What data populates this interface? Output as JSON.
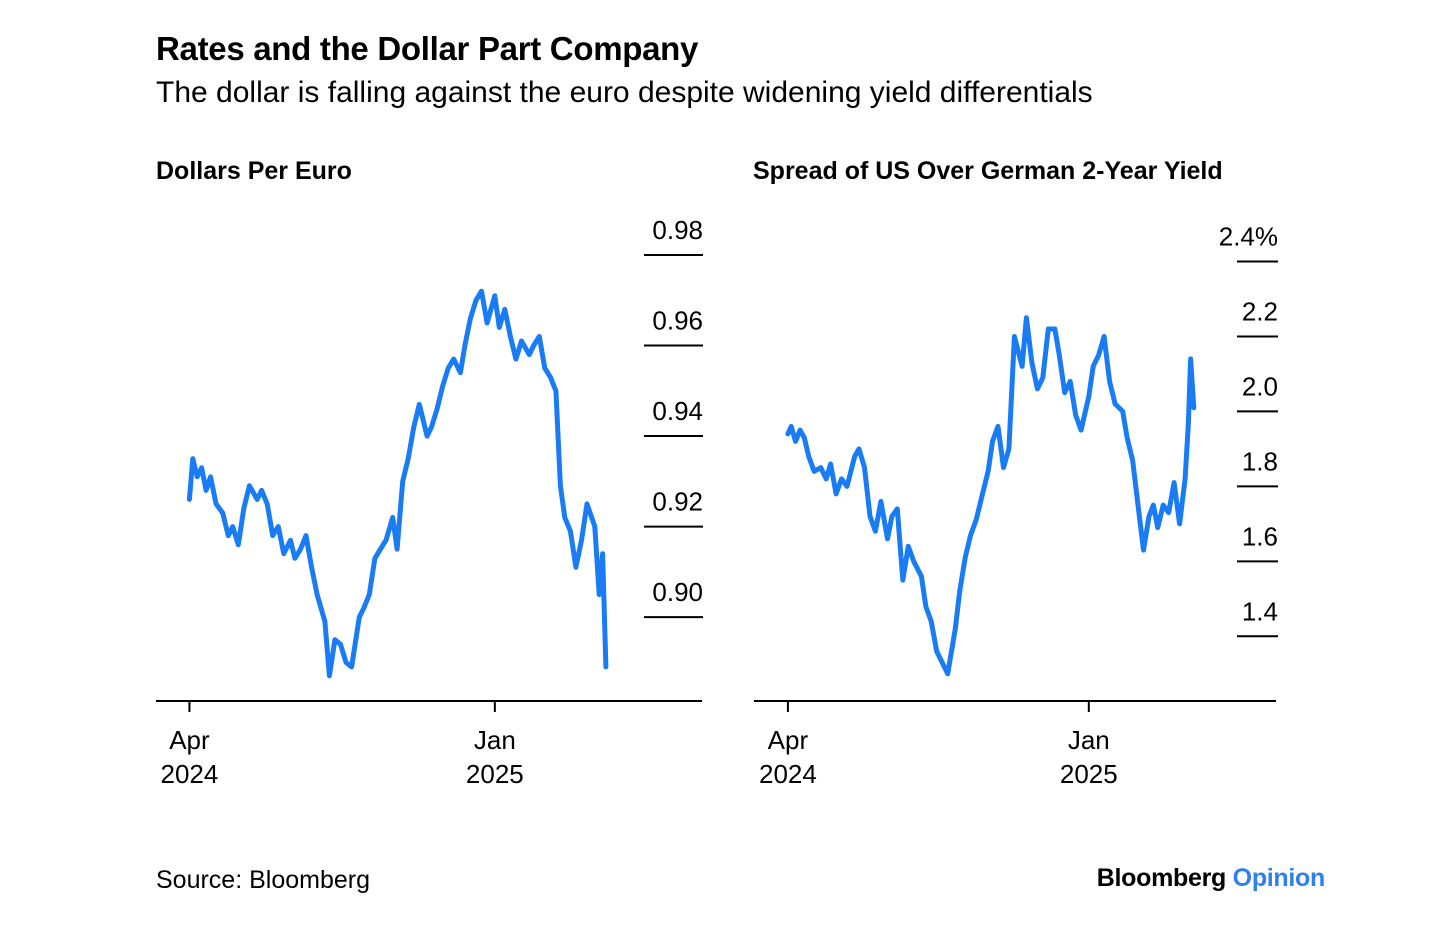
{
  "header": {
    "title": "Rates and the Dollar Part Company",
    "subtitle": "The dollar is falling against the euro despite widening yield differentials"
  },
  "footer": {
    "source": "Source: Bloomberg",
    "brand_main": "Bloomberg",
    "brand_accent": "Opinion"
  },
  "colors": {
    "line": "#1a7cf5",
    "axis": "#000000",
    "brand_accent": "#2f7ff0"
  },
  "chart_data": [
    {
      "type": "line",
      "title": "Dollars Per Euro",
      "ylim": [
        0.885,
        0.98
      ],
      "yticks": [
        {
          "value": 0.98,
          "label": "0.98"
        },
        {
          "value": 0.96,
          "label": "0.96"
        },
        {
          "value": 0.94,
          "label": "0.94"
        },
        {
          "value": 0.92,
          "label": "0.92"
        },
        {
          "value": 0.9,
          "label": "0.90"
        }
      ],
      "xlim": [
        "2024-03-01",
        "2025-04-30"
      ],
      "xticks": [
        {
          "date": "2024-04-01",
          "label": [
            "Apr",
            "2024"
          ]
        },
        {
          "date": "2025-01-01",
          "label": [
            "Jan",
            "2025"
          ]
        }
      ],
      "grid": false,
      "series": [
        {
          "x": [
            "2024-04-01",
            "2024-04-04",
            "2024-04-08",
            "2024-04-12",
            "2024-04-16",
            "2024-04-20",
            "2024-04-25",
            "2024-05-01",
            "2024-05-06",
            "2024-05-10",
            "2024-05-15",
            "2024-05-20",
            "2024-05-25",
            "2024-06-01",
            "2024-06-05",
            "2024-06-10",
            "2024-06-15",
            "2024-06-20",
            "2024-06-25",
            "2024-07-01",
            "2024-07-05",
            "2024-07-10",
            "2024-07-15",
            "2024-07-20",
            "2024-07-25",
            "2024-08-01",
            "2024-08-05",
            "2024-08-10",
            "2024-08-15",
            "2024-08-20",
            "2024-08-25",
            "2024-09-01",
            "2024-09-05",
            "2024-09-10",
            "2024-09-15",
            "2024-09-20",
            "2024-09-25",
            "2024-10-01",
            "2024-10-05",
            "2024-10-10",
            "2024-10-15",
            "2024-10-20",
            "2024-10-25",
            "2024-11-01",
            "2024-11-05",
            "2024-11-10",
            "2024-11-15",
            "2024-11-20",
            "2024-11-25",
            "2024-12-01",
            "2024-12-05",
            "2024-12-10",
            "2024-12-15",
            "2024-12-20",
            "2024-12-25",
            "2025-01-01",
            "2025-01-05",
            "2025-01-10",
            "2025-01-15",
            "2025-01-20",
            "2025-01-25",
            "2025-02-01",
            "2025-02-05",
            "2025-02-10",
            "2025-02-15",
            "2025-02-20",
            "2025-02-25",
            "2025-03-01",
            "2025-03-05",
            "2025-03-10",
            "2025-03-15",
            "2025-03-20",
            "2025-03-25",
            "2025-04-01",
            "2025-04-05",
            "2025-04-08",
            "2025-04-11"
          ],
          "values": [
            0.926,
            0.935,
            0.931,
            0.933,
            0.928,
            0.931,
            0.925,
            0.923,
            0.918,
            0.92,
            0.916,
            0.924,
            0.929,
            0.926,
            0.928,
            0.925,
            0.918,
            0.92,
            0.914,
            0.917,
            0.913,
            0.915,
            0.918,
            0.911,
            0.905,
            0.899,
            0.887,
            0.895,
            0.894,
            0.89,
            0.889,
            0.9,
            0.902,
            0.905,
            0.913,
            0.915,
            0.917,
            0.922,
            0.915,
            0.93,
            0.935,
            0.942,
            0.947,
            0.94,
            0.942,
            0.946,
            0.951,
            0.955,
            0.957,
            0.954,
            0.96,
            0.966,
            0.97,
            0.972,
            0.965,
            0.971,
            0.964,
            0.968,
            0.962,
            0.957,
            0.961,
            0.958,
            0.96,
            0.962,
            0.955,
            0.953,
            0.95,
            0.929,
            0.922,
            0.919,
            0.911,
            0.917,
            0.925,
            0.92,
            0.905,
            0.914,
            0.889
          ]
        }
      ]
    },
    {
      "type": "line",
      "title": "Spread of US Over German 2-Year Yield",
      "ylim": [
        1.27,
        2.42
      ],
      "yticks": [
        {
          "value": 2.4,
          "label": "2.4%"
        },
        {
          "value": 2.2,
          "label": "2.2"
        },
        {
          "value": 2.0,
          "label": "2.0"
        },
        {
          "value": 1.8,
          "label": "1.8"
        },
        {
          "value": 1.6,
          "label": "1.6"
        },
        {
          "value": 1.4,
          "label": "1.4"
        }
      ],
      "xlim": [
        "2024-03-01",
        "2025-04-30"
      ],
      "xticks": [
        {
          "date": "2024-04-01",
          "label": [
            "Apr",
            "2024"
          ]
        },
        {
          "date": "2025-01-01",
          "label": [
            "Jan",
            "2025"
          ]
        }
      ],
      "grid": false,
      "series": [
        {
          "x": [
            "2024-04-01",
            "2024-04-04",
            "2024-04-08",
            "2024-04-12",
            "2024-04-16",
            "2024-04-20",
            "2024-04-25",
            "2024-05-01",
            "2024-05-06",
            "2024-05-10",
            "2024-05-15",
            "2024-05-20",
            "2024-05-25",
            "2024-06-01",
            "2024-06-05",
            "2024-06-10",
            "2024-06-15",
            "2024-06-20",
            "2024-06-25",
            "2024-07-01",
            "2024-07-05",
            "2024-07-10",
            "2024-07-15",
            "2024-07-20",
            "2024-07-25",
            "2024-08-01",
            "2024-08-05",
            "2024-08-10",
            "2024-08-15",
            "2024-08-20",
            "2024-08-25",
            "2024-09-01",
            "2024-09-05",
            "2024-09-10",
            "2024-09-15",
            "2024-09-20",
            "2024-09-25",
            "2024-10-01",
            "2024-10-05",
            "2024-10-10",
            "2024-10-15",
            "2024-10-20",
            "2024-10-25",
            "2024-11-01",
            "2024-11-05",
            "2024-11-10",
            "2024-11-15",
            "2024-11-20",
            "2024-11-25",
            "2024-12-01",
            "2024-12-05",
            "2024-12-10",
            "2024-12-15",
            "2024-12-20",
            "2024-12-25",
            "2025-01-01",
            "2025-01-05",
            "2025-01-10",
            "2025-01-15",
            "2025-01-20",
            "2025-01-25",
            "2025-02-01",
            "2025-02-05",
            "2025-02-10",
            "2025-02-15",
            "2025-02-20",
            "2025-02-25",
            "2025-03-01",
            "2025-03-05",
            "2025-03-10",
            "2025-03-15",
            "2025-03-20",
            "2025-03-25",
            "2025-03-30",
            "2025-04-02",
            "2025-04-04",
            "2025-04-07"
          ],
          "values": [
            1.94,
            1.96,
            1.92,
            1.95,
            1.93,
            1.88,
            1.84,
            1.85,
            1.82,
            1.86,
            1.78,
            1.82,
            1.8,
            1.88,
            1.9,
            1.85,
            1.72,
            1.68,
            1.76,
            1.66,
            1.72,
            1.74,
            1.55,
            1.64,
            1.6,
            1.56,
            1.48,
            1.44,
            1.36,
            1.33,
            1.3,
            1.42,
            1.52,
            1.61,
            1.67,
            1.71,
            1.77,
            1.84,
            1.92,
            1.96,
            1.85,
            1.9,
            2.2,
            2.12,
            2.25,
            2.13,
            2.06,
            2.09,
            2.22,
            2.22,
            2.15,
            2.05,
            2.08,
            1.99,
            1.95,
            2.04,
            2.12,
            2.15,
            2.2,
            2.08,
            2.02,
            2.0,
            1.93,
            1.87,
            1.75,
            1.63,
            1.72,
            1.75,
            1.69,
            1.75,
            1.73,
            1.81,
            1.7,
            1.82,
            1.97,
            2.14,
            2.01
          ]
        }
      ]
    }
  ]
}
